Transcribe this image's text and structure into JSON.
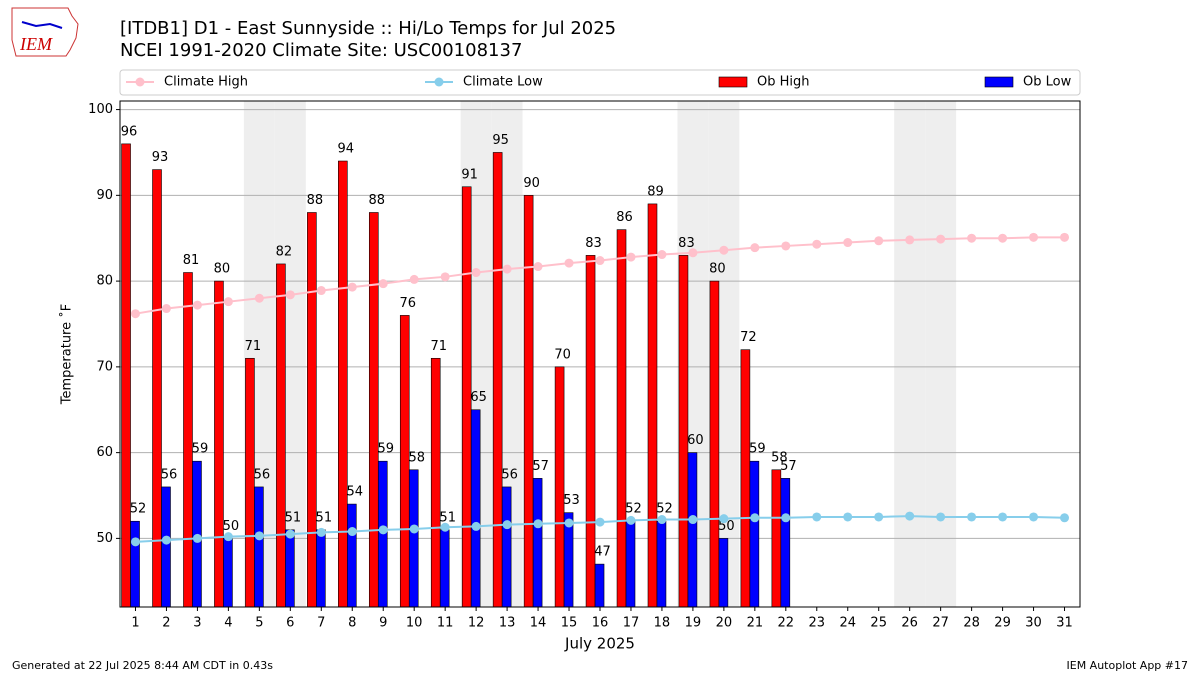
{
  "logo": "IEM",
  "chart_data": {
    "type": "bar",
    "title": "[ITDB1] D1 - East Sunnyside  :: Hi/Lo Temps for Jul 2025",
    "subtitle": "NCEI 1991-2020 Climate Site: USC00108137",
    "ylabel": "Temperature ˚F",
    "xlabel": "July 2025",
    "x": [
      1,
      2,
      3,
      4,
      5,
      6,
      7,
      8,
      9,
      10,
      11,
      12,
      13,
      14,
      15,
      16,
      17,
      18,
      19,
      20,
      21,
      22,
      23,
      24,
      25,
      26,
      27,
      28,
      29,
      30,
      31
    ],
    "xlim": [
      0.5,
      31.5
    ],
    "xticks": [
      1,
      2,
      3,
      4,
      5,
      6,
      7,
      8,
      9,
      10,
      11,
      12,
      13,
      14,
      15,
      16,
      17,
      18,
      19,
      20,
      21,
      22,
      23,
      24,
      25,
      26,
      27,
      28,
      29,
      30,
      31
    ],
    "ylim": [
      42,
      101
    ],
    "yticks": [
      50,
      60,
      70,
      80,
      90,
      100
    ],
    "grid": true,
    "shaded_days": [
      5,
      6,
      12,
      13,
      19,
      20,
      26,
      27
    ],
    "series": [
      {
        "name": "Climate High",
        "type": "line",
        "color": "#ffc0cb",
        "values": [
          76.2,
          76.8,
          77.2,
          77.6,
          78.0,
          78.4,
          78.9,
          79.3,
          79.7,
          80.2,
          80.5,
          81.0,
          81.4,
          81.7,
          82.1,
          82.4,
          82.8,
          83.1,
          83.3,
          83.6,
          83.9,
          84.1,
          84.3,
          84.5,
          84.7,
          84.8,
          84.9,
          85.0,
          85.0,
          85.1,
          85.1
        ]
      },
      {
        "name": "Climate Low",
        "type": "line",
        "color": "#87ceeb",
        "values": [
          49.6,
          49.8,
          50.0,
          50.2,
          50.3,
          50.5,
          50.7,
          50.8,
          51.0,
          51.1,
          51.3,
          51.4,
          51.6,
          51.7,
          51.8,
          51.9,
          52.1,
          52.2,
          52.2,
          52.3,
          52.4,
          52.4,
          52.5,
          52.5,
          52.5,
          52.6,
          52.5,
          52.5,
          52.5,
          52.5,
          52.4
        ]
      },
      {
        "name": "Ob High",
        "type": "bar",
        "color": "#ff0000",
        "values": [
          96,
          93,
          81,
          80,
          71,
          82,
          88,
          94,
          88,
          76,
          71,
          91,
          95,
          90,
          70,
          83,
          86,
          89,
          83,
          80,
          72,
          58,
          null,
          null,
          null,
          null,
          null,
          null,
          null,
          null,
          null
        ]
      },
      {
        "name": "Ob Low",
        "type": "bar",
        "color": "#0000ff",
        "values": [
          52,
          56,
          59,
          50,
          56,
          51,
          51,
          54,
          59,
          58,
          51,
          65,
          56,
          57,
          53,
          47,
          52,
          52,
          60,
          50,
          59,
          57,
          null,
          null,
          null,
          null,
          null,
          null,
          null,
          null,
          null
        ]
      }
    ],
    "footer_left": "Generated at 22 Jul 2025 8:44 AM CDT in 0.43s",
    "footer_right": "IEM Autoplot App #17"
  }
}
